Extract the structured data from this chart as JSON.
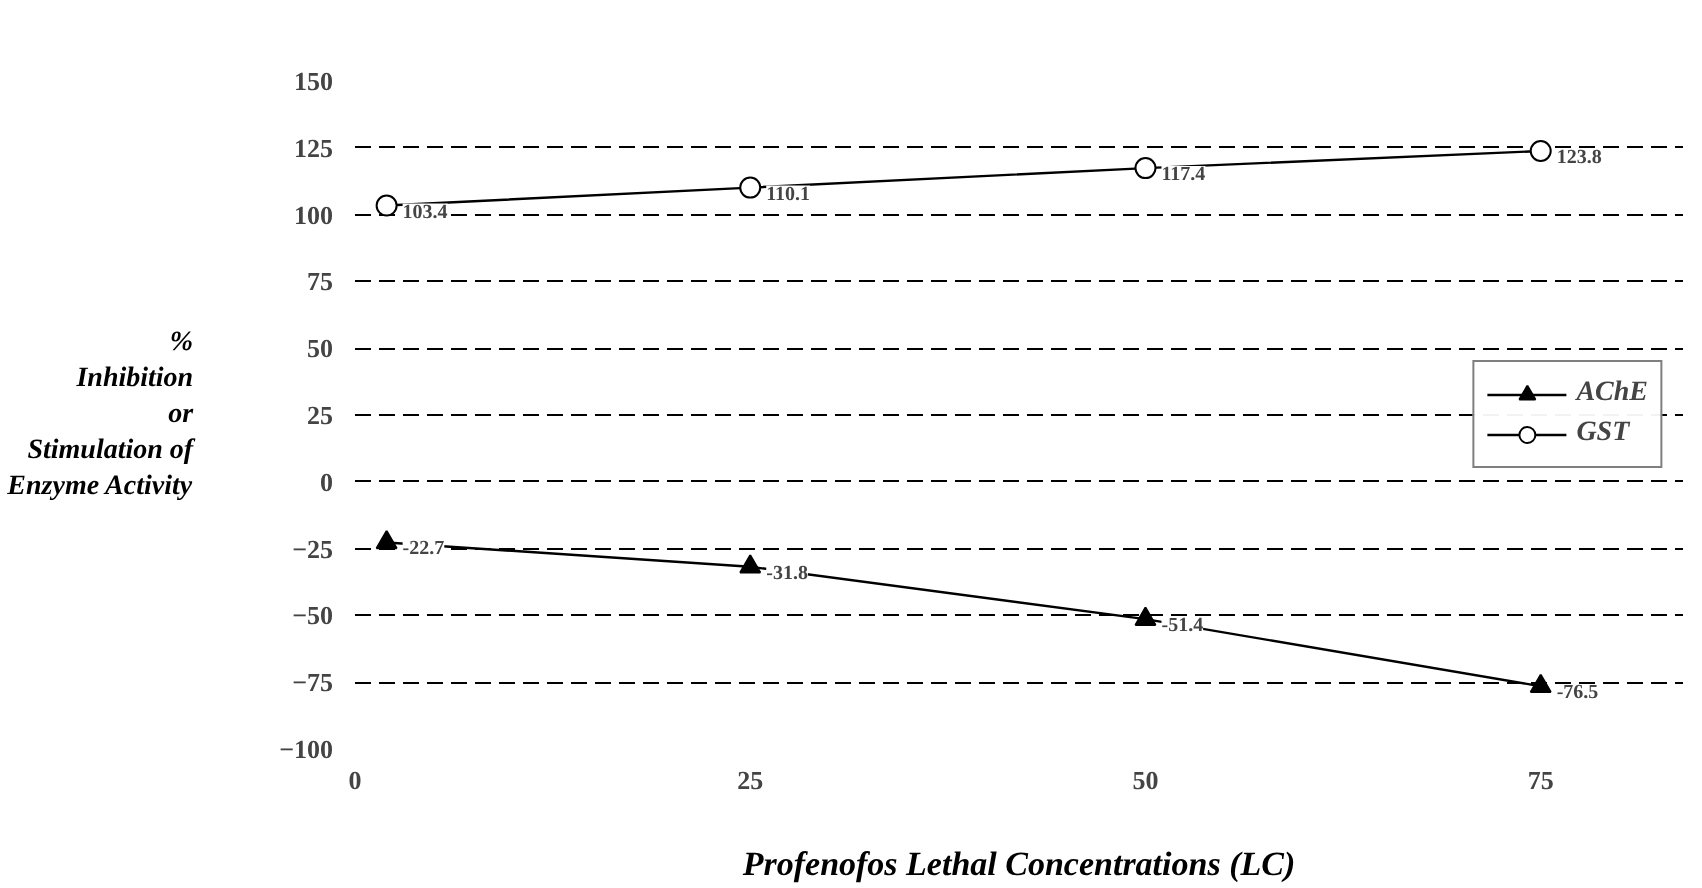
{
  "chart_data": {
    "type": "line",
    "xlabel": "Profenofos Lethal Concentrations (LC)",
    "ylabel": "%\nInhibition\nor\nStimulation of\nEnzyme Activity",
    "x": [
      2,
      25,
      50,
      75
    ],
    "series": [
      {
        "name": "AChE",
        "color": "#000000",
        "marker": "triangle",
        "values": [
          -22.7,
          -31.8,
          -51.4,
          -76.5
        ]
      },
      {
        "name": "GST",
        "color": "#000000",
        "marker": "circle",
        "values": [
          103.4,
          110.1,
          117.4,
          123.8
        ]
      }
    ],
    "xlim": [
      0,
      84
    ],
    "xticks": [
      0,
      25,
      50,
      75
    ],
    "ylim": [
      -100,
      150
    ],
    "yticks": [
      -100,
      -75,
      -50,
      -25,
      0,
      25,
      50,
      75,
      100,
      125,
      150
    ],
    "grid": "y",
    "legend": "right",
    "data_labels": true,
    "line_style": "solid"
  }
}
